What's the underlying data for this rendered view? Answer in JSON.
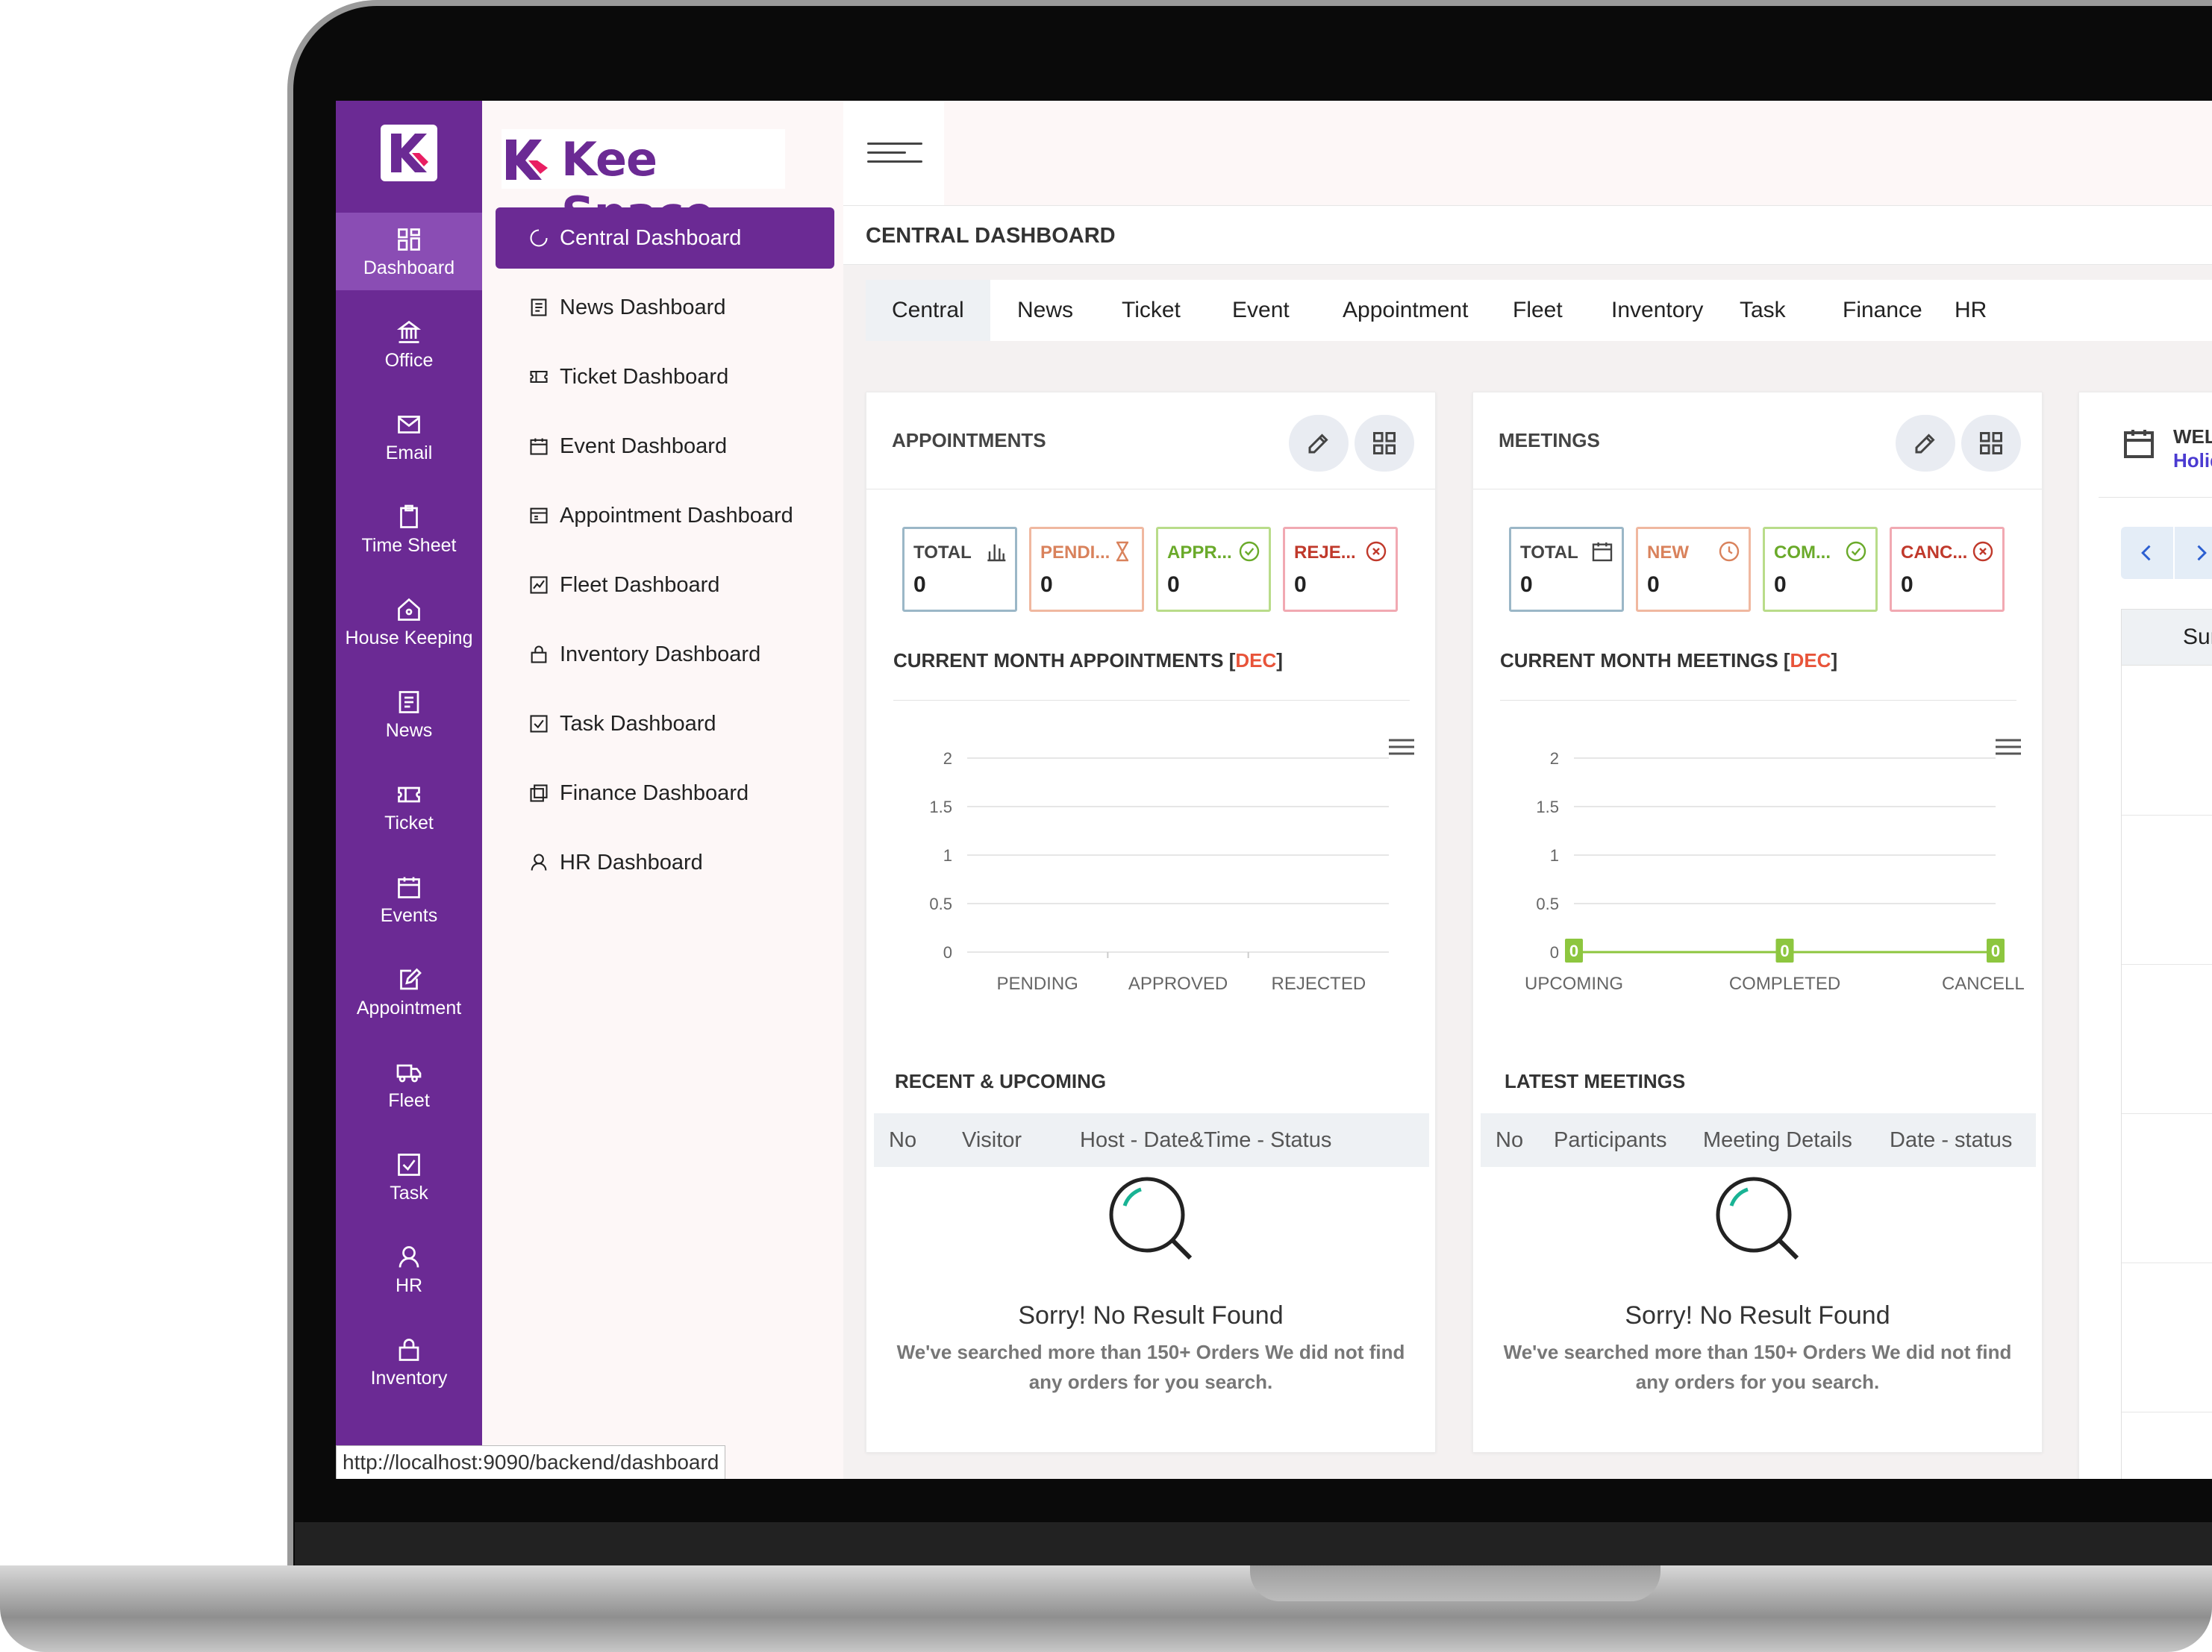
{
  "url": "http://localhost:9090/backend/dashboard",
  "brand": {
    "name": "Kee Space"
  },
  "rail": [
    {
      "label": "Dashboard",
      "icon": "grid-icon"
    },
    {
      "label": "Office",
      "icon": "building-icon"
    },
    {
      "label": "Email",
      "icon": "mail-icon"
    },
    {
      "label": "Time Sheet",
      "icon": "clipboard-icon"
    },
    {
      "label": "House Keeping",
      "icon": "house-icon"
    },
    {
      "label": "News",
      "icon": "newspaper-icon"
    },
    {
      "label": "Ticket",
      "icon": "ticket-icon"
    },
    {
      "label": "Events",
      "icon": "calendar-icon"
    },
    {
      "label": "Appointment",
      "icon": "edit-icon"
    },
    {
      "label": "Fleet",
      "icon": "truck-icon"
    },
    {
      "label": "Task",
      "icon": "checkbox-icon"
    },
    {
      "label": "HR",
      "icon": "user-icon"
    },
    {
      "label": "Inventory",
      "icon": "lock-icon"
    }
  ],
  "menu": [
    {
      "label": "Central Dashboard",
      "icon": "loader-icon"
    },
    {
      "label": "News Dashboard",
      "icon": "newspaper-icon"
    },
    {
      "label": "Ticket Dashboard",
      "icon": "ticket-icon"
    },
    {
      "label": "Event Dashboard",
      "icon": "calendar-icon"
    },
    {
      "label": "Appointment Dashboard",
      "icon": "window-icon"
    },
    {
      "label": "Fleet Dashboard",
      "icon": "chart-line-icon"
    },
    {
      "label": "Inventory Dashboard",
      "icon": "lock-icon"
    },
    {
      "label": "Task Dashboard",
      "icon": "checkbox-icon"
    },
    {
      "label": "Finance Dashboard",
      "icon": "copy-icon"
    },
    {
      "label": "HR Dashboard",
      "icon": "user-icon"
    }
  ],
  "page_title": "CENTRAL DASHBOARD",
  "tabs": [
    "Central",
    "News",
    "Ticket",
    "Event",
    "Appointment",
    "Fleet",
    "Inventory",
    "Task",
    "Finance",
    "HR"
  ],
  "appointments": {
    "title": "APPOINTMENTS",
    "stats": [
      {
        "label": "TOTAL",
        "value": "0",
        "color": "#9bb7c7",
        "text_color": "#444444",
        "icon": "bar-chart-icon"
      },
      {
        "label": "PENDI...",
        "value": "0",
        "color": "#f0b8a0",
        "text_color": "#d9825c",
        "icon": "hourglass-icon"
      },
      {
        "label": "APPR...",
        "value": "0",
        "color": "#b9dc8a",
        "text_color": "#6aaa2a",
        "icon": "check-circle-icon"
      },
      {
        "label": "REJE...",
        "value": "0",
        "color": "#f1a9b2",
        "text_color": "#c0392b",
        "icon": "x-circle-icon"
      }
    ],
    "chart_title": "CURRENT MONTH APPOINTMENTS [",
    "chart_month": "DEC",
    "chart_close": "]",
    "recent_title": "RECENT & UPCOMING",
    "table_headers": [
      "No",
      "Visitor",
      "Host - Date&Time - Status"
    ],
    "empty_title": "Sorry! No Result Found",
    "empty_text_1": "We've searched more than 150+ Orders We did not find",
    "empty_text_2": "any orders for you search."
  },
  "meetings": {
    "title": "MEETINGS",
    "stats": [
      {
        "label": "TOTAL",
        "value": "0",
        "color": "#9bb7c7",
        "text_color": "#444444",
        "icon": "calendar-icon"
      },
      {
        "label": "NEW",
        "value": "0",
        "color": "#f0b8a0",
        "text_color": "#d9825c",
        "icon": "clock-icon"
      },
      {
        "label": "COM...",
        "value": "0",
        "color": "#b9dc8a",
        "text_color": "#6aaa2a",
        "icon": "check-circle-icon"
      },
      {
        "label": "CANC...",
        "value": "0",
        "color": "#f1a9b2",
        "text_color": "#c0392b",
        "icon": "x-circle-icon"
      }
    ],
    "chart_title": "CURRENT MONTH MEETINGS [",
    "chart_month": "DEC",
    "chart_close": "]",
    "latest_title": "LATEST MEETINGS",
    "table_headers": [
      "No",
      "Participants",
      "Meeting Details",
      "Date - status"
    ],
    "empty_title": "Sorry! No Result Found",
    "empty_text_1": "We've searched more than 150+ Orders We did not find",
    "empty_text_2": "any orders for you search."
  },
  "welcome": {
    "title": "WELC",
    "subtitle": "Holida",
    "day": "Sun"
  },
  "chart_data": [
    {
      "type": "bar",
      "categories": [
        "PENDING",
        "APPROVED",
        "REJECTED"
      ],
      "values": [
        0,
        0,
        0
      ],
      "yticks": [
        "2",
        "1.5",
        "1",
        "0.5",
        "0"
      ],
      "ylim": [
        0,
        2
      ]
    },
    {
      "type": "line",
      "categories": [
        "UPCOMING",
        "COMPLETED",
        "CANCELLED"
      ],
      "values": [
        0,
        0,
        0
      ],
      "data_labels": [
        "0",
        "0",
        "0"
      ],
      "yticks": [
        "2",
        "1.5",
        "1",
        "0.5",
        "0"
      ],
      "ylim": [
        0,
        2
      ],
      "color": "#8dc63f"
    }
  ]
}
